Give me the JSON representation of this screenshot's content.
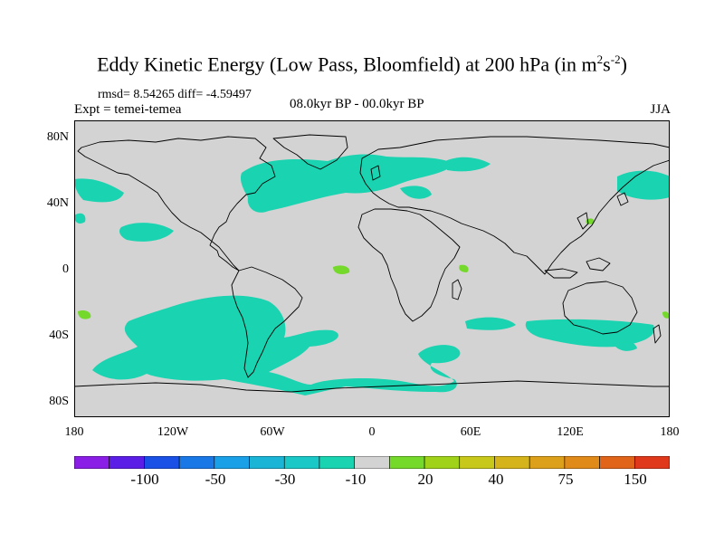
{
  "header": {
    "title_main": "Eddy Kinetic Energy (Low Pass, Bloomfield) at 200 hPa (in m",
    "title_sup1": "2",
    "title_mid": "s",
    "title_sup2": "-2",
    "title_end": ")",
    "stats": "rmsd= 8.54265  diff= -4.59497",
    "experiment": "Expt = temei-temea",
    "period": "08.0kyr BP - 00.0kyr BP",
    "season": "JJA"
  },
  "map": {
    "background_color": "#d3d3d3",
    "anomaly_color_neg": "#1ad3b0",
    "anomaly_color_pos": "#74d92a",
    "lat_labels": [
      "80N",
      "40N",
      "0",
      "40S",
      "80S"
    ],
    "lon_labels": [
      "180",
      "120W",
      "60W",
      "0",
      "60E",
      "120E",
      "180"
    ]
  },
  "colorbar": {
    "colors": [
      "#8a1ee6",
      "#5a1ee6",
      "#1a50e6",
      "#1a78e6",
      "#1aa0e6",
      "#1ab4d6",
      "#1ac8c8",
      "#1ad3b0",
      "#d3d3d3",
      "#74d92a",
      "#a0d21a",
      "#c8c81a",
      "#d4b41a",
      "#dca01a",
      "#e08a1a",
      "#e0641a",
      "#e0381a"
    ],
    "labels": [
      "-100",
      "-50",
      "-30",
      "-10",
      "20",
      "40",
      "75",
      "150"
    ]
  }
}
